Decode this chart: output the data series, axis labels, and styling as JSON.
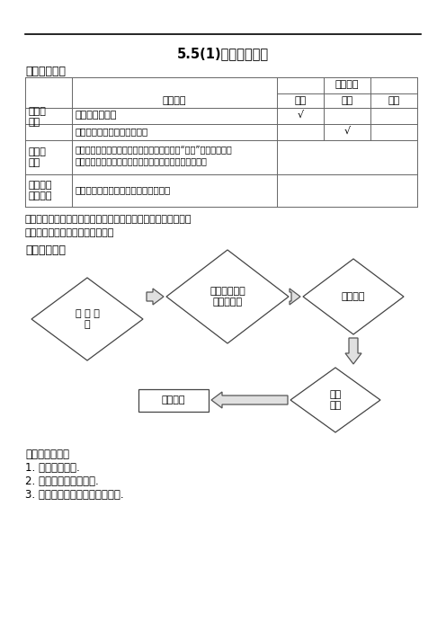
{
  "title": "5.5(1)有理数的减法",
  "section1": "《教学目标》",
  "section2": "《教学流程》",
  "key_point": "重点：掌握有理数减法法则，并能运用减法法则进行简单的计算",
  "difficult_point": "难点：运用减法法则进行简单计算",
  "row_group2_content1": "在学习、探究有理数减法法则的过程中，体会“化归”的数学思想，",
  "row_group2_content2": "通过解决实际问题，体会有理数减法在实际生活中的应用",
  "row_group3_content": "培养学生学习兴趣，及应用数学的意识",
  "flow_notes_title": "流程意图说明：",
  "flow_note1": "1. 巩固加法法则.",
  "flow_note2": "2. 探讨有理数减法法则.",
  "flow_note3": "3. 通过例题让学生学会运算方法.",
  "node1": "学 习 准\n备",
  "node2": "讨论得到有理\n数减法法则",
  "node3": "例题讲解",
  "node4": "课内\n小结",
  "node5": "课内检测",
  "col0_r1": "知识与\n技能",
  "col0_r2": "过程与\n方法",
  "col0_r3": "情感态度\n与价值观",
  "col1_h": "学习内容",
  "col2_h": "学习水平",
  "col3_h": "记忆",
  "col4_h": "解释",
  "col5_h": "探究",
  "row1_content": "有理数减法法则",
  "row2_content": "运用减法法则进行简单的计算",
  "bg_color": "#ffffff"
}
